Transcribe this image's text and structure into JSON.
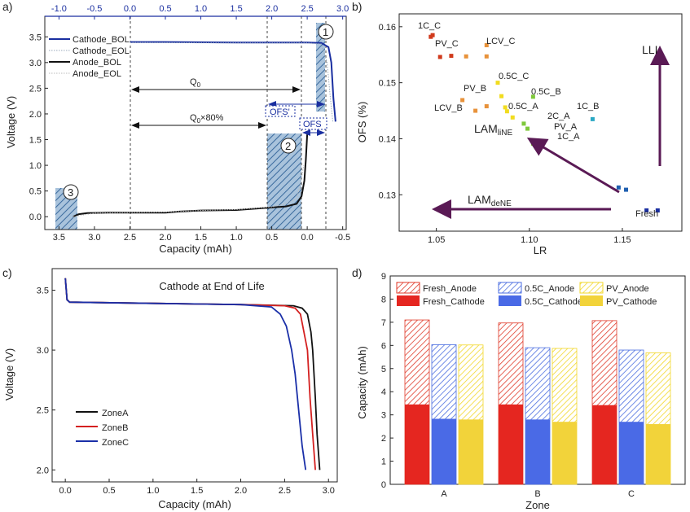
{
  "panels": {
    "a": "a)",
    "b": "b)",
    "c": "c)",
    "d": "d)"
  },
  "chart_data": [
    {
      "panel": "a",
      "type": "line",
      "xlabel": "Capacity (mAh)",
      "ylabel": "Voltage (V)",
      "xlim": [
        3.7,
        -0.55
      ],
      "ylim": [
        -0.25,
        3.9
      ],
      "xticks": [
        "3.5",
        "3.0",
        "2.5",
        "2.0",
        "1.5",
        "1.0",
        "0.5",
        "0.0",
        "-0.5"
      ],
      "yticks": [
        "0.0",
        "0.5",
        "1.0",
        "1.5",
        "2.0",
        "2.5",
        "3.0",
        "3.5"
      ],
      "top_xlim": [
        -1.2,
        3.05
      ],
      "top_xticks": [
        "-1.0",
        "-0.5",
        "0.0",
        "0.5",
        "1.0",
        "1.5",
        "2.0",
        "2.5",
        "3.0"
      ],
      "legend": [
        "Cathode_BOL",
        "Cathode_EOL",
        "Anode_BOL",
        "Anode_EOL"
      ],
      "annotations": {
        "q0": "Q",
        "q0_sub": "0",
        "q80": "Q",
        "q80_sub": "0",
        "q80_tail": "×80%",
        "ofs_prime": "OFS'",
        "ofs": "OFS",
        "r1": "1",
        "r2": "2",
        "r3": "3"
      },
      "series": [
        {
          "name": "Cathode_BOL",
          "x": [
            2.5,
            2.0,
            1.0,
            0.0,
            -0.2,
            -0.3,
            -0.34,
            -0.37,
            -0.4
          ],
          "y": [
            3.4,
            3.4,
            3.39,
            3.39,
            3.38,
            3.3,
            3.0,
            2.3,
            1.85
          ]
        },
        {
          "name": "Cathode_EOL",
          "x": [
            2.5,
            1.0,
            0.0,
            -0.2,
            -0.28,
            -0.32,
            -0.36
          ],
          "y": [
            3.39,
            3.38,
            3.38,
            3.36,
            3.0,
            2.4,
            1.85
          ]
        },
        {
          "name": "Anode_BOL",
          "x": [
            3.3,
            3.22,
            3.1,
            2.8,
            2.0,
            1.8,
            1.5,
            1.0,
            0.5,
            0.3,
            0.15,
            0.08,
            0.04,
            0.02,
            0.0
          ],
          "y": [
            0.0,
            0.05,
            0.07,
            0.08,
            0.08,
            0.1,
            0.12,
            0.13,
            0.18,
            0.2,
            0.25,
            0.4,
            0.7,
            1.1,
            1.6
          ]
        },
        {
          "name": "Anode_EOL",
          "x": [
            3.3,
            3.0,
            2.0,
            1.5,
            1.0,
            0.5,
            0.3,
            0.15,
            0.1,
            0.05
          ],
          "y": [
            0.0,
            0.07,
            0.09,
            0.12,
            0.14,
            0.19,
            0.25,
            0.35,
            0.6,
            1.0
          ]
        }
      ]
    },
    {
      "panel": "b",
      "type": "scatter",
      "xlabel": "LR",
      "ylabel": "OFS (%)",
      "xlim": [
        1.03,
        1.182
      ],
      "ylim": [
        0.1235,
        0.1623
      ],
      "xticks": [
        "1.05",
        "1.10",
        "1.15"
      ],
      "yticks": [
        "0.13",
        "0.14",
        "0.15",
        "0.16"
      ],
      "labels": [
        "1C_C",
        "PV_C",
        "LCV_C",
        "0.5C_C",
        "PV_B",
        "0.5C_B",
        "LCV_B",
        "0.5C_A",
        "1C_B",
        "2C_A",
        "PV_A",
        "1C_A",
        "LLI",
        "LAM",
        "liNE",
        "LAM",
        "deNE",
        "Fresh"
      ],
      "points": [
        {
          "x": 1.047,
          "y": 0.1582,
          "color": "#d03a1c"
        },
        {
          "x": 1.048,
          "y": 0.1585,
          "color": "#d03a1c"
        },
        {
          "x": 1.052,
          "y": 0.1546,
          "color": "#d03a1c"
        },
        {
          "x": 1.058,
          "y": 0.1548,
          "color": "#d03a1c"
        },
        {
          "x": 1.066,
          "y": 0.1547,
          "color": "#e8923a"
        },
        {
          "x": 1.077,
          "y": 0.1567,
          "color": "#e8923a"
        },
        {
          "x": 1.077,
          "y": 0.1547,
          "color": "#e8923a"
        },
        {
          "x": 1.064,
          "y": 0.1469,
          "color": "#e8923a"
        },
        {
          "x": 1.071,
          "y": 0.145,
          "color": "#e8923a"
        },
        {
          "x": 1.077,
          "y": 0.1458,
          "color": "#e8923a"
        },
        {
          "x": 1.083,
          "y": 0.15,
          "color": "#f1dc1f"
        },
        {
          "x": 1.085,
          "y": 0.1476,
          "color": "#f1dc1f"
        },
        {
          "x": 1.087,
          "y": 0.1456,
          "color": "#f1dc1f"
        },
        {
          "x": 1.088,
          "y": 0.1449,
          "color": "#f1dc1f"
        },
        {
          "x": 1.091,
          "y": 0.1438,
          "color": "#f1dc1f"
        },
        {
          "x": 1.102,
          "y": 0.1475,
          "color": "#7ec83a"
        },
        {
          "x": 1.097,
          "y": 0.1427,
          "color": "#7ec83a"
        },
        {
          "x": 1.099,
          "y": 0.1418,
          "color": "#7ec83a"
        },
        {
          "x": 1.102,
          "y": 0.1391,
          "color": "#7ec83a"
        },
        {
          "x": 1.134,
          "y": 0.1435,
          "color": "#2aa8c4"
        },
        {
          "x": 1.148,
          "y": 0.1313,
          "color": "#1f5fb0"
        },
        {
          "x": 1.152,
          "y": 0.1309,
          "color": "#1f5fb0"
        },
        {
          "x": 1.163,
          "y": 0.1272,
          "color": "#1a2fa0"
        },
        {
          "x": 1.169,
          "y": 0.1272,
          "color": "#1a2fa0"
        }
      ]
    },
    {
      "panel": "c",
      "type": "line",
      "title": "Cathode at End of Life",
      "xlabel": "Capacity (mAh)",
      "ylabel": "Voltage (V)",
      "xlim": [
        -0.15,
        3.1
      ],
      "ylim": [
        1.9,
        3.68
      ],
      "xticks": [
        "0.0",
        "0.5",
        "1.0",
        "1.5",
        "2.0",
        "2.5",
        "3.0"
      ],
      "yticks": [
        "2.0",
        "2.5",
        "3.0",
        "3.5"
      ],
      "series": [
        {
          "name": "ZoneA",
          "color": "#111111",
          "x": [
            0,
            0.02,
            0.05,
            1.0,
            2.0,
            2.6,
            2.7,
            2.76,
            2.8,
            2.82,
            2.85,
            2.87,
            2.9
          ],
          "y": [
            3.6,
            3.42,
            3.4,
            3.39,
            3.38,
            3.37,
            3.35,
            3.3,
            3.15,
            3.0,
            2.6,
            2.3,
            2.0
          ]
        },
        {
          "name": "ZoneB",
          "color": "#d42020",
          "x": [
            0,
            0.02,
            0.05,
            1.0,
            2.0,
            2.5,
            2.62,
            2.68,
            2.72,
            2.76,
            2.79,
            2.82,
            2.85
          ],
          "y": [
            3.6,
            3.42,
            3.4,
            3.39,
            3.38,
            3.37,
            3.35,
            3.3,
            3.15,
            3.0,
            2.6,
            2.3,
            2.0
          ]
        },
        {
          "name": "ZoneC",
          "color": "#1a2fa8",
          "x": [
            0,
            0.02,
            0.05,
            1.0,
            2.0,
            2.35,
            2.45,
            2.52,
            2.58,
            2.62,
            2.66,
            2.7,
            2.74
          ],
          "y": [
            3.6,
            3.42,
            3.4,
            3.39,
            3.38,
            3.36,
            3.3,
            3.2,
            3.0,
            2.8,
            2.5,
            2.2,
            2.0
          ]
        }
      ]
    },
    {
      "panel": "d",
      "type": "bar",
      "xlabel": "Zone",
      "ylabel": "Capacity (mAh)",
      "ylim": [
        0,
        9
      ],
      "yticks": [
        "0",
        "1",
        "2",
        "3",
        "4",
        "5",
        "6",
        "7",
        "8",
        "9"
      ],
      "categories": [
        "A",
        "B",
        "C"
      ],
      "legend": [
        "Fresh_Anode",
        "Fresh_Cathode",
        "0.5C_Anode",
        "0.5C_Cathode",
        "PV_Anode",
        "PV_Cathode"
      ],
      "series": [
        {
          "name": "Fresh_Anode",
          "values": [
            7.1,
            6.97,
            7.07
          ],
          "color": "#e03a2a",
          "hatched": true
        },
        {
          "name": "Fresh_Cathode",
          "values": [
            3.45,
            3.45,
            3.42
          ],
          "color": "#e52620",
          "hatched": false
        },
        {
          "name": "0.5C_Anode",
          "values": [
            6.03,
            5.9,
            5.8
          ],
          "color": "#4b6ee0",
          "hatched": true
        },
        {
          "name": "0.5C_Cathode",
          "values": [
            2.83,
            2.8,
            2.7
          ],
          "color": "#4a6ae6",
          "hatched": false
        },
        {
          "name": "PV_Anode",
          "values": [
            6.02,
            5.87,
            5.68
          ],
          "color": "#f2d72a",
          "hatched": true
        },
        {
          "name": "PV_Cathode",
          "values": [
            2.8,
            2.7,
            2.6
          ],
          "color": "#f2d33a",
          "hatched": false
        }
      ]
    }
  ]
}
